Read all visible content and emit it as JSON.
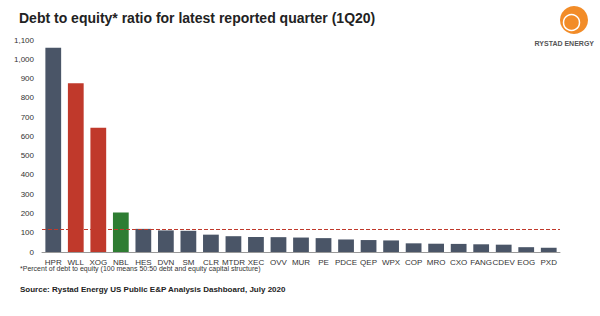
{
  "chart_data": {
    "type": "bar",
    "title": "Debt to equity* ratio for latest reported quarter (1Q20)",
    "logo": "RYSTAD ENERGY",
    "footnote": "*Percent of debt to equity (100 means 50:50 debt and equity capital structure)",
    "source": "Source: Rystad Energy US Public E&P Analysis Dashboard, July 2020",
    "categories": [
      "HPR",
      "WLL",
      "XOG",
      "NBL",
      "HES",
      "DVN",
      "SM",
      "CLR",
      "MTDR",
      "XEC",
      "OVV",
      "MUR",
      "PE",
      "PDCE",
      "QEP",
      "WPX",
      "COP",
      "MRO",
      "CXO",
      "FANG",
      "CDEV",
      "EOG",
      "PXD"
    ],
    "values": [
      1060,
      875,
      645,
      205,
      120,
      112,
      110,
      90,
      82,
      78,
      77,
      75,
      72,
      65,
      62,
      60,
      45,
      43,
      42,
      40,
      38,
      25,
      22
    ],
    "colors": [
      "#4a5567",
      "#c0392b",
      "#c0392b",
      "#2e7d32",
      "#4a5567",
      "#4a5567",
      "#4a5567",
      "#4a5567",
      "#4a5567",
      "#4a5567",
      "#4a5567",
      "#4a5567",
      "#4a5567",
      "#4a5567",
      "#4a5567",
      "#4a5567",
      "#4a5567",
      "#4a5567",
      "#4a5567",
      "#4a5567",
      "#4a5567",
      "#4a5567",
      "#4a5567"
    ],
    "reference_line": 120,
    "ylim": [
      0,
      1100
    ],
    "yticks": [
      0,
      100,
      200,
      300,
      400,
      500,
      600,
      700,
      800,
      900,
      {
        "value": 1000,
        "label": "1,000"
      },
      {
        "value": 1100,
        "label": "1,100"
      }
    ],
    "grid": false
  }
}
